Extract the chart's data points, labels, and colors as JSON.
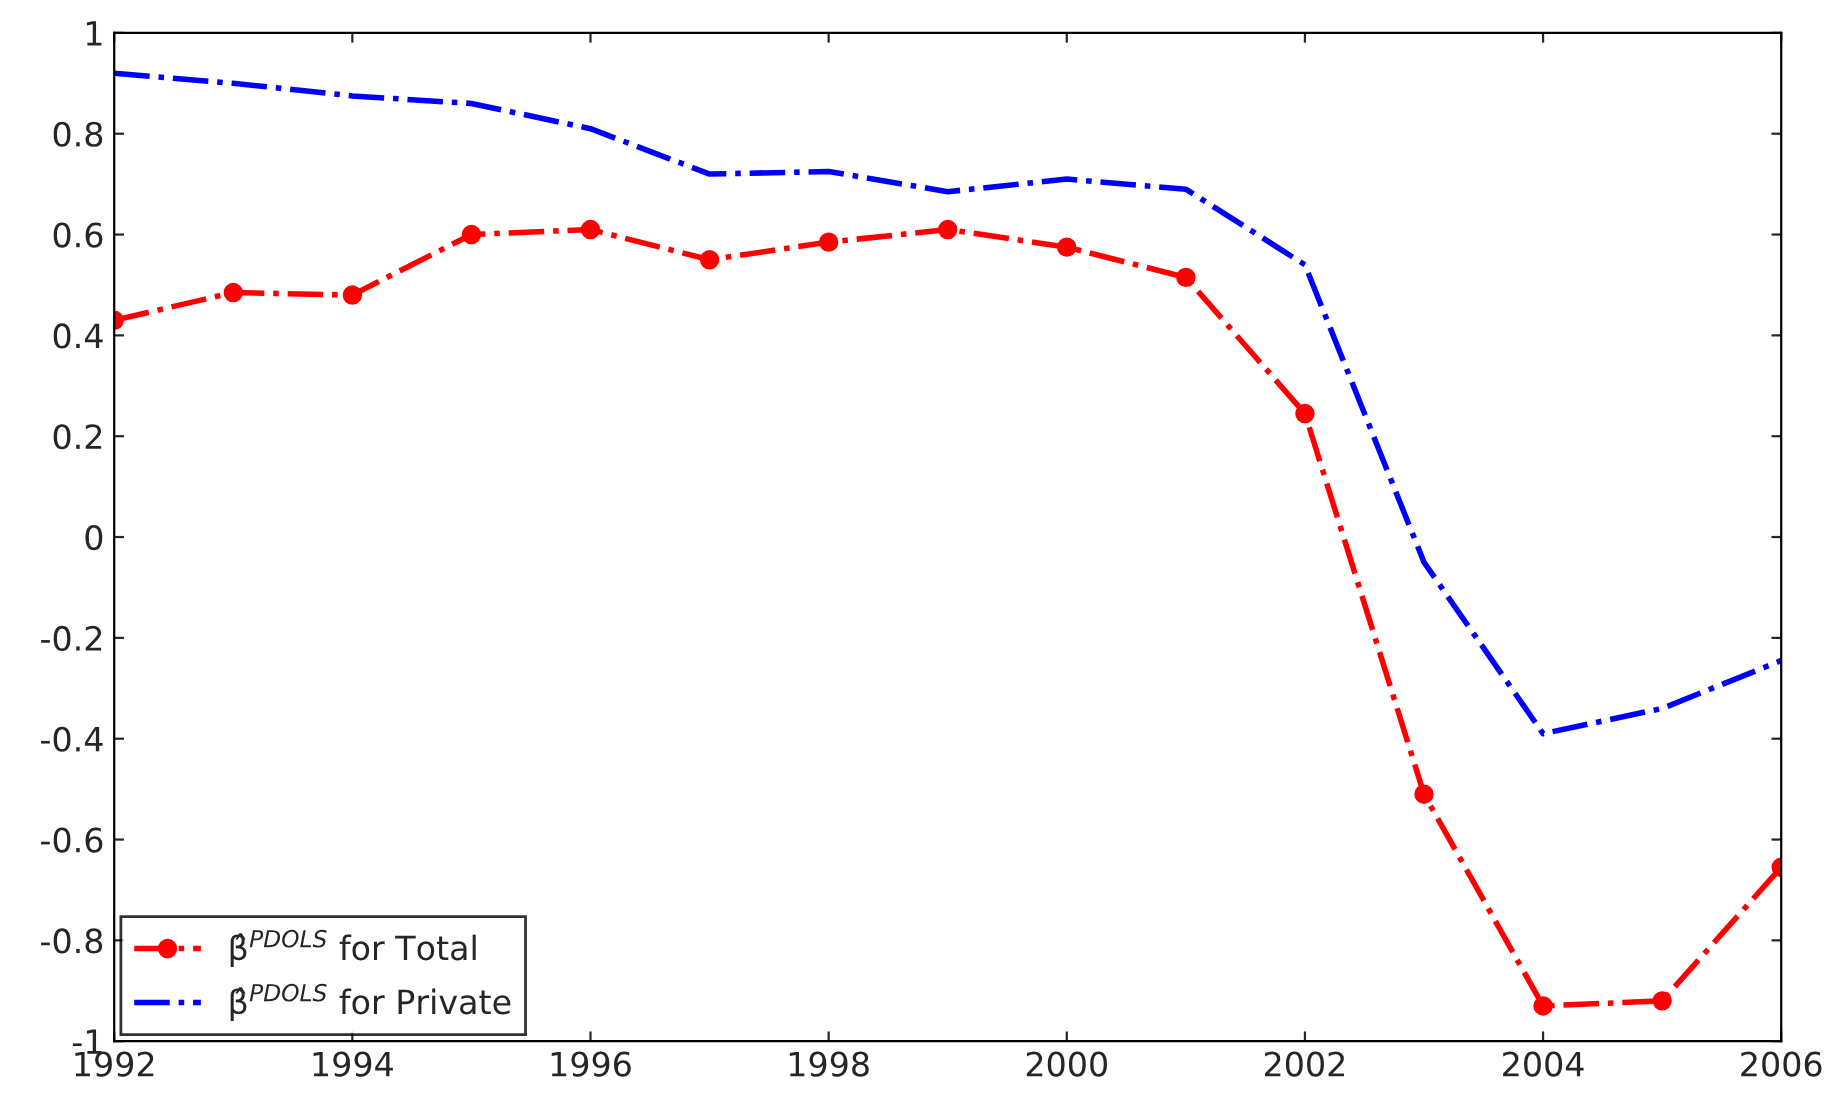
{
  "chart_data": {
    "type": "line",
    "x": [
      1992,
      1993,
      1994,
      1995,
      1996,
      1997,
      1998,
      1999,
      2000,
      2001,
      2002,
      2003,
      2004,
      2005,
      2006
    ],
    "series": [
      {
        "name": "β̂$^{PDOLS}$ for Total",
        "color": "#ff0000",
        "marker": "circle",
        "line_style": "dashdot",
        "values": [
          0.43,
          0.485,
          0.48,
          0.6,
          0.61,
          0.55,
          0.585,
          0.61,
          0.575,
          0.515,
          0.245,
          -0.51,
          -0.93,
          -0.92,
          -0.655
        ]
      },
      {
        "name": "β̂$^{PDOLS}$ for Private",
        "color": "#0000ff",
        "marker": "none",
        "line_style": "dashdot",
        "values": [
          0.92,
          0.9,
          0.875,
          0.86,
          0.81,
          0.72,
          0.725,
          0.685,
          0.71,
          0.69,
          0.54,
          -0.05,
          -0.39,
          -0.34,
          -0.245
        ]
      }
    ],
    "xlim": [
      1992,
      2006
    ],
    "xticks": [
      1992,
      1994,
      1996,
      1998,
      2000,
      2002,
      2004,
      2006
    ],
    "ylim": [
      -1,
      1
    ],
    "yticks": [
      -1,
      -0.8,
      -0.6,
      -0.4,
      -0.2,
      0,
      0.2,
      0.4,
      0.6,
      0.8,
      1
    ],
    "grid": false,
    "legend": "bottom left"
  }
}
